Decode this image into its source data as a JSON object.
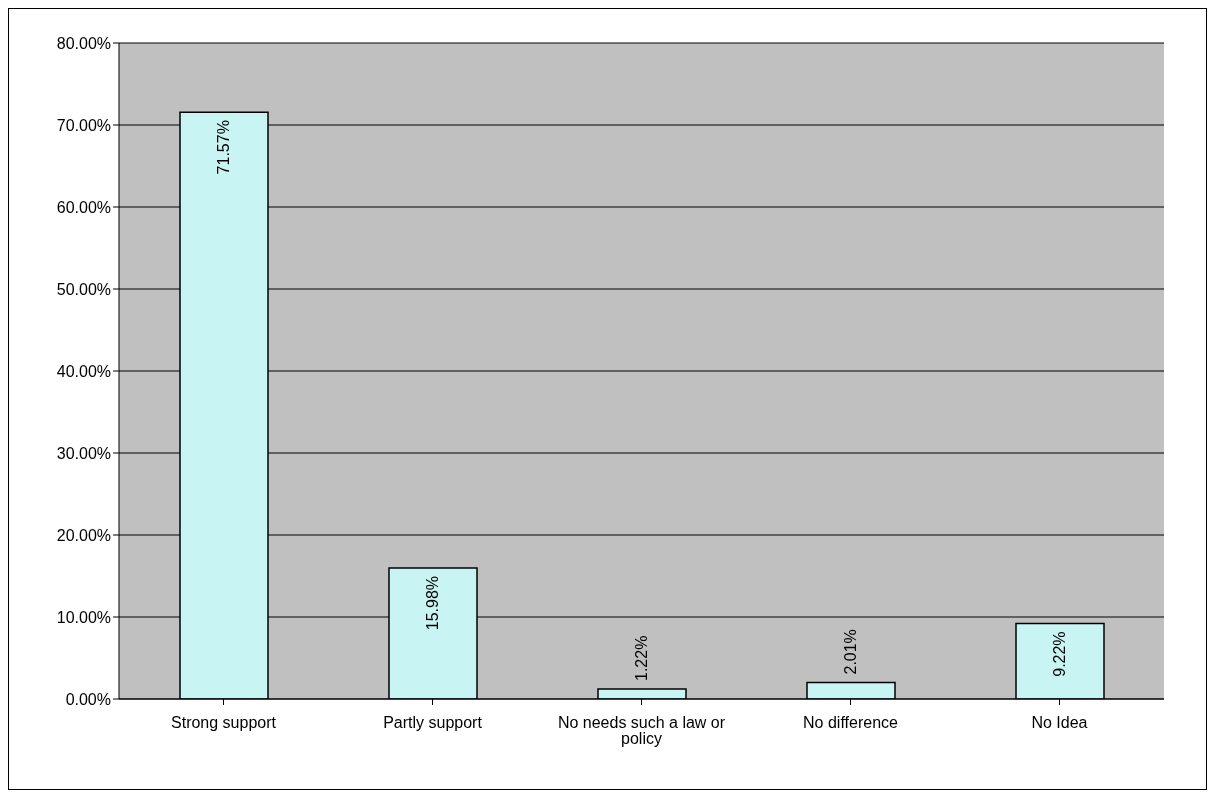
{
  "chart_data": {
    "type": "bar",
    "categories": [
      "Strong support",
      "Partly support",
      "No needs such a law or policy",
      "No difference",
      "No Idea"
    ],
    "values": [
      71.57,
      15.98,
      1.22,
      2.01,
      9.22
    ],
    "value_labels": [
      "71.57%",
      "15.98%",
      "1.22%",
      "2.01%",
      "9.22%"
    ],
    "color": "#c8f4f4",
    "ylim": [
      0,
      80
    ],
    "yticks": [
      {
        "value": 0,
        "label": "0.00%"
      },
      {
        "value": 10,
        "label": "10.00%"
      },
      {
        "value": 20,
        "label": "20.00%"
      },
      {
        "value": 30,
        "label": "30.00%"
      },
      {
        "value": 40,
        "label": "40.00%"
      },
      {
        "value": 50,
        "label": "50.00%"
      },
      {
        "value": 60,
        "label": "60.00%"
      },
      {
        "value": 70,
        "label": "70.00%"
      },
      {
        "value": 80,
        "label": "80.00%"
      }
    ],
    "grid": "y"
  }
}
